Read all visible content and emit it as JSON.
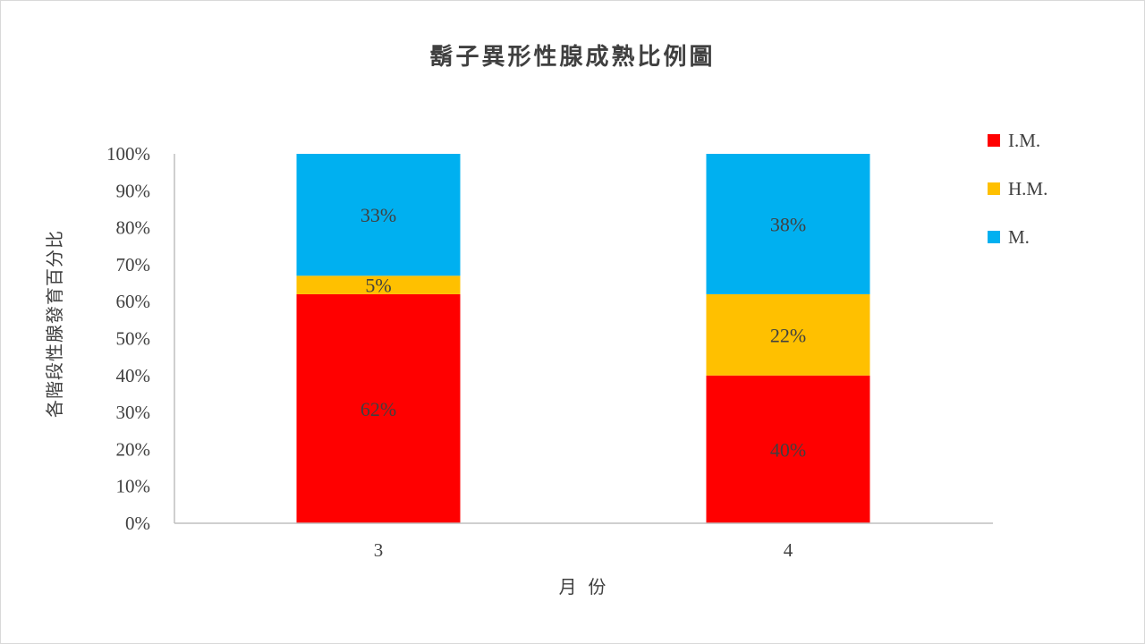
{
  "chart_data": {
    "type": "bar",
    "stacked": true,
    "percent": true,
    "title": "鬍子異形性腺成熟比例圖",
    "xlabel": "月  份",
    "ylabel": "各階段性腺發育百分比",
    "categories": [
      "3",
      "4"
    ],
    "ylim": [
      0,
      100
    ],
    "yticks": [
      "0%",
      "10%",
      "20%",
      "30%",
      "40%",
      "50%",
      "60%",
      "70%",
      "80%",
      "90%",
      "100%"
    ],
    "series": [
      {
        "name": "I.M.",
        "color": "#ff0000",
        "values": [
          62,
          40
        ],
        "labels": [
          "62%",
          "40%"
        ]
      },
      {
        "name": "H.M.",
        "color": "#ffc000",
        "values": [
          5,
          22
        ],
        "labels": [
          "5%",
          "22%"
        ]
      },
      {
        "name": "M.",
        "color": "#00b0f0",
        "values": [
          33,
          38
        ],
        "labels": [
          "33%",
          "38%"
        ]
      }
    ],
    "grid": false,
    "legend": "top-right"
  }
}
